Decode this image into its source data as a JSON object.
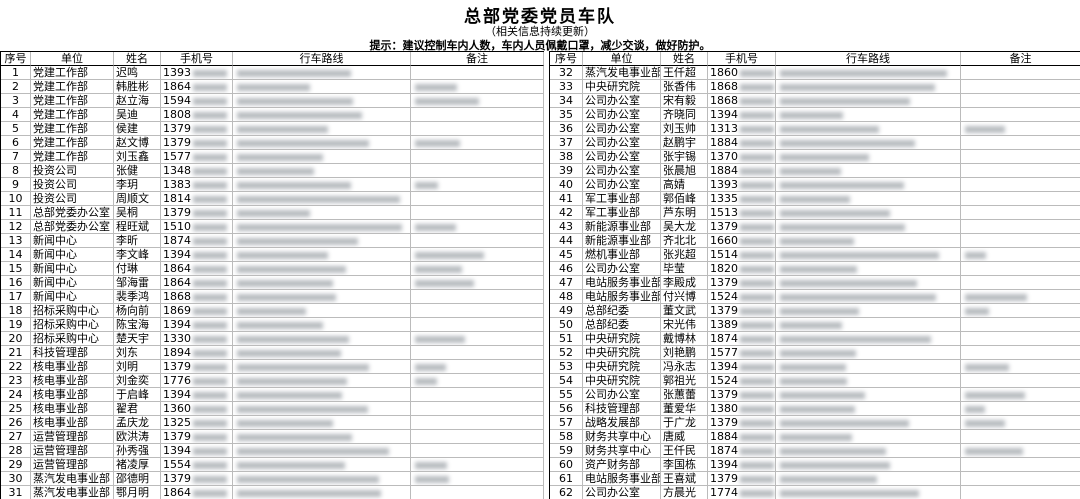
{
  "header": {
    "title": "总部党委党员车队",
    "subtitle": "（相关信息持续更新）",
    "notice": "提示：建议控制车内人数，车内人员佩戴口罩，减少交谈，做好防护。"
  },
  "tables": [
    {
      "columns": [
        "序号",
        "单位",
        "姓名",
        "手机号",
        "行车路线",
        "备注"
      ],
      "rows": [
        [
          1,
          "党建工作部",
          "迟鸣",
          "1393"
        ],
        [
          2,
          "党建工作部",
          "韩胜彬",
          "1864"
        ],
        [
          3,
          "党建工作部",
          "赵立海",
          "1594"
        ],
        [
          4,
          "党建工作部",
          "吴迪",
          "1808"
        ],
        [
          5,
          "党建工作部",
          "侯建",
          "1379"
        ],
        [
          6,
          "党建工作部",
          "赵文博",
          "1379"
        ],
        [
          7,
          "党建工作部",
          "刘玉鑫",
          "1577"
        ],
        [
          8,
          "投资公司",
          "张健",
          "1348"
        ],
        [
          9,
          "投资公司",
          "李玥",
          "1383"
        ],
        [
          10,
          "投资公司",
          "周顺文",
          "1814"
        ],
        [
          11,
          "总部党委办公室",
          "吴桐",
          "1379"
        ],
        [
          12,
          "总部党委办公室",
          "程旺斌",
          "1510"
        ],
        [
          13,
          "新闻中心",
          "李昕",
          "1874"
        ],
        [
          14,
          "新闻中心",
          "李文峰",
          "1394"
        ],
        [
          15,
          "新闻中心",
          "付琳",
          "1864"
        ],
        [
          16,
          "新闻中心",
          "邹海雷",
          "1864"
        ],
        [
          17,
          "新闻中心",
          "裴季鸿",
          "1868"
        ],
        [
          18,
          "招标采购中心",
          "杨向前",
          "1869"
        ],
        [
          19,
          "招标采购中心",
          "陈宝海",
          "1394"
        ],
        [
          20,
          "招标采购中心",
          "楚天宇",
          "1330"
        ],
        [
          21,
          "科技管理部",
          "刘东",
          "1894"
        ],
        [
          22,
          "核电事业部",
          "刘明",
          "1379"
        ],
        [
          23,
          "核电事业部",
          "刘金奕",
          "1776"
        ],
        [
          24,
          "核电事业部",
          "于启峰",
          "1394"
        ],
        [
          25,
          "核电事业部",
          "翟君",
          "1360"
        ],
        [
          26,
          "核电事业部",
          "孟庆龙",
          "1325"
        ],
        [
          27,
          "运营管理部",
          "欧洪涛",
          "1379"
        ],
        [
          28,
          "运营管理部",
          "孙秀强",
          "1394"
        ],
        [
          29,
          "运营管理部",
          "褚凌厚",
          "1554"
        ],
        [
          30,
          "蒸汽发电事业部",
          "邵德明",
          "1379"
        ],
        [
          31,
          "蒸汽发电事业部",
          "鄂月明",
          "1864"
        ]
      ]
    },
    {
      "columns": [
        "序号",
        "单位",
        "姓名",
        "手机号",
        "行车路线",
        "备注"
      ],
      "rows": [
        [
          32,
          "蒸汽发电事业部",
          "王仟超",
          "1860"
        ],
        [
          33,
          "中央研究院",
          "张香伟",
          "1868"
        ],
        [
          34,
          "公司办公室",
          "宋有毅",
          "1868"
        ],
        [
          35,
          "公司办公室",
          "齐晓同",
          "1394"
        ],
        [
          36,
          "公司办公室",
          "刘玉帅",
          "1313"
        ],
        [
          37,
          "公司办公室",
          "赵鹏宇",
          "1884"
        ],
        [
          38,
          "公司办公室",
          "张宇锡",
          "1370"
        ],
        [
          39,
          "公司办公室",
          "张晨旭",
          "1884"
        ],
        [
          40,
          "公司办公室",
          "高婧",
          "1393"
        ],
        [
          41,
          "军工事业部",
          "郭佰峰",
          "1335"
        ],
        [
          42,
          "军工事业部",
          "芦东明",
          "1513"
        ],
        [
          43,
          "新能源事业部",
          "吴大龙",
          "1379"
        ],
        [
          44,
          "新能源事业部",
          "齐北北",
          "1660"
        ],
        [
          45,
          "燃机事业部",
          "张兆超",
          "1514"
        ],
        [
          46,
          "公司办公室",
          "毕莹",
          "1820"
        ],
        [
          47,
          "电站服务事业部",
          "李殿成",
          "1379"
        ],
        [
          48,
          "电站服务事业部",
          "付兴博",
          "1524"
        ],
        [
          49,
          "总部纪委",
          "董文武",
          "1379"
        ],
        [
          50,
          "总部纪委",
          "宋光伟",
          "1389"
        ],
        [
          51,
          "中央研究院",
          "戴博林",
          "1874"
        ],
        [
          52,
          "中央研究院",
          "刘艳鹏",
          "1577"
        ],
        [
          53,
          "中央研究院",
          "冯永志",
          "1394"
        ],
        [
          54,
          "中央研究院",
          "郭祖光",
          "1524"
        ],
        [
          55,
          "公司办公室",
          "张蕙蕾",
          "1379"
        ],
        [
          56,
          "科技管理部",
          "董爱华",
          "1380"
        ],
        [
          57,
          "战略发展部",
          "于广龙",
          "1379"
        ],
        [
          58,
          "财务共享中心",
          "唐威",
          "1884"
        ],
        [
          59,
          "财务共享中心",
          "王仟民",
          "1874"
        ],
        [
          60,
          "资产财务部",
          "李国栋",
          "1394"
        ],
        [
          61,
          "电站服务事业部",
          "王喜斌",
          "1379"
        ],
        [
          62,
          "公司办公室",
          "方晨光",
          "1774"
        ]
      ]
    }
  ]
}
